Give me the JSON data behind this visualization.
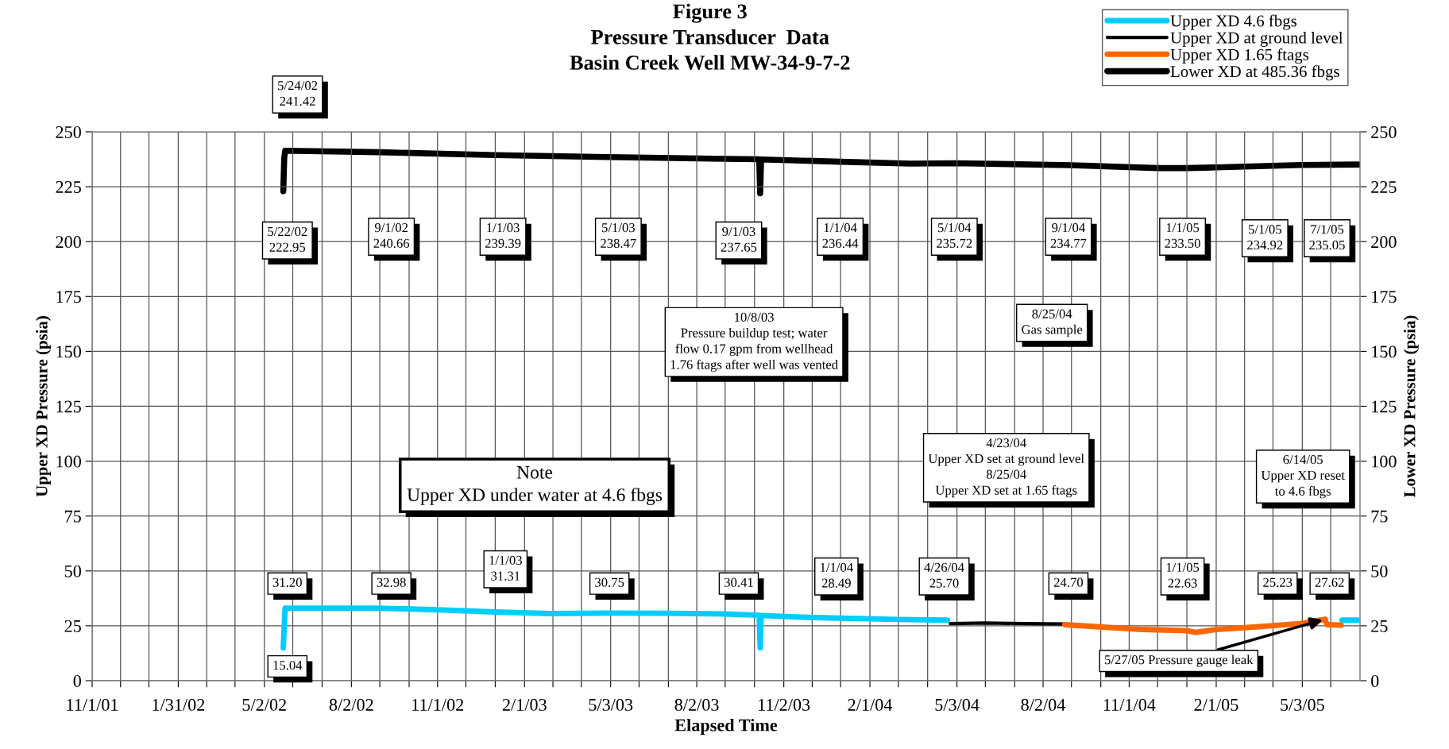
{
  "chart_data": {
    "type": "line",
    "title": "Figure 3\nPressure Transducer  Data\nBasin Creek Well MW-34-9-7-2",
    "xlabel": "Elapsed Time",
    "ylabel": "Upper XD Pressure (psia)",
    "y2label": "Lower XD Pressure (psia)",
    "xlim": [
      "2001-11-01",
      "2005-07-03"
    ],
    "xticks": [
      {
        "value": "2001-11-01",
        "label": "11/1/01"
      },
      {
        "value": "2001-12-01",
        "label": null
      },
      {
        "value": "2001-12-31",
        "label": null
      },
      {
        "value": "2002-01-31",
        "label": "1/31/02"
      },
      {
        "value": "2002-03-02",
        "label": null
      },
      {
        "value": "2002-04-01",
        "label": null
      },
      {
        "value": "2002-05-02",
        "label": "5/2/02"
      },
      {
        "value": "2002-06-01",
        "label": null
      },
      {
        "value": "2002-07-02",
        "label": null
      },
      {
        "value": "2002-08-02",
        "label": "8/2/02"
      },
      {
        "value": "2002-09-01",
        "label": null
      },
      {
        "value": "2002-10-02",
        "label": null
      },
      {
        "value": "2002-11-01",
        "label": "11/1/02"
      },
      {
        "value": "2002-12-01",
        "label": null
      },
      {
        "value": "2003-01-01",
        "label": null
      },
      {
        "value": "2003-02-01",
        "label": "2/1/03"
      },
      {
        "value": "2003-03-03",
        "label": null
      },
      {
        "value": "2003-04-02",
        "label": null
      },
      {
        "value": "2003-05-03",
        "label": "5/3/03"
      },
      {
        "value": "2003-06-02",
        "label": null
      },
      {
        "value": "2003-07-03",
        "label": null
      },
      {
        "value": "2003-08-02",
        "label": "8/2/03"
      },
      {
        "value": "2003-09-01",
        "label": null
      },
      {
        "value": "2003-10-02",
        "label": null
      },
      {
        "value": "2003-11-02",
        "label": "11/2/03"
      },
      {
        "value": "2003-12-02",
        "label": null
      },
      {
        "value": "2004-01-01",
        "label": null
      },
      {
        "value": "2004-02-01",
        "label": "2/1/04"
      },
      {
        "value": "2004-03-02",
        "label": null
      },
      {
        "value": "2004-04-02",
        "label": null
      },
      {
        "value": "2004-05-03",
        "label": "5/3/04"
      },
      {
        "value": "2004-06-02",
        "label": null
      },
      {
        "value": "2004-07-03",
        "label": null
      },
      {
        "value": "2004-08-02",
        "label": "8/2/04"
      },
      {
        "value": "2004-09-01",
        "label": null
      },
      {
        "value": "2004-10-02",
        "label": null
      },
      {
        "value": "2004-11-01",
        "label": "11/1/04"
      },
      {
        "value": "2004-12-01",
        "label": null
      },
      {
        "value": "2005-01-01",
        "label": null
      },
      {
        "value": "2005-02-01",
        "label": "2/1/05"
      },
      {
        "value": "2005-03-03",
        "label": null
      },
      {
        "value": "2005-04-02",
        "label": null
      },
      {
        "value": "2005-05-03",
        "label": "5/3/05"
      },
      {
        "value": "2005-06-02",
        "label": null
      }
    ],
    "ylim": [
      0,
      250
    ],
    "yticks": [
      0,
      25,
      50,
      75,
      100,
      125,
      150,
      175,
      200,
      225,
      250
    ],
    "y2lim": [
      0,
      250
    ],
    "y2ticks": [
      0,
      25,
      50,
      75,
      100,
      125,
      150,
      175,
      200,
      225,
      250
    ],
    "grid": true,
    "legend": "top right",
    "marker": "none",
    "line_style": "solid",
    "series": [
      {
        "name": "Upper XD 4.6 fbgs",
        "color": "#00ccff",
        "x": [
          "2002-05-22",
          "2002-05-23",
          "2002-05-24",
          "2002-07-01",
          "2002-09-01",
          "2002-11-01",
          "2003-01-01",
          "2003-03-01",
          "2003-05-01",
          "2003-07-01",
          "2003-09-01",
          "2003-10-07",
          "2003-10-08",
          "2003-10-09",
          "2003-11-15",
          "2004-01-01",
          "2004-03-01",
          "2004-04-23",
          "2004-05-01",
          "2005-06-14",
          "2005-07-01"
        ],
        "values": [
          15.0,
          25,
          33.0,
          33.0,
          33.0,
          32.3,
          31.3,
          30.6,
          30.8,
          30.7,
          30.4,
          29.8,
          15,
          29.7,
          29.0,
          28.5,
          27.9,
          27.6,
          null,
          27.6,
          27.6
        ]
      },
      {
        "name": "Upper XD at ground level",
        "color": "#000000",
        "x": [
          "2004-04-26",
          "2004-06-01",
          "2004-07-15",
          "2004-08-25"
        ],
        "values": [
          26.0,
          26.3,
          26.0,
          25.8
        ]
      },
      {
        "name": "Upper XD 1.65 ftags",
        "color": "#ff6600",
        "x": [
          "2004-08-25",
          "2004-10-01",
          "2004-11-15",
          "2005-01-01",
          "2005-01-10",
          "2005-02-01",
          "2005-03-15",
          "2005-05-01",
          "2005-05-27",
          "2005-05-29",
          "2005-06-13"
        ],
        "values": [
          25.5,
          24.5,
          23.3,
          22.8,
          22.0,
          23.3,
          24.5,
          26.0,
          28.0,
          25.5,
          25.3
        ]
      },
      {
        "name": "Lower XD at 485.36 fbgs",
        "color": "#000000",
        "axis": "y2",
        "x": [
          "2002-05-22",
          "2002-05-23",
          "2002-05-24",
          "2002-09-01",
          "2003-01-01",
          "2003-05-01",
          "2003-09-01",
          "2003-10-07",
          "2003-10-08",
          "2003-10-09",
          "2004-01-01",
          "2004-03-15",
          "2004-05-01",
          "2004-09-01",
          "2004-12-01",
          "2005-01-01",
          "2005-02-01",
          "2005-05-01",
          "2005-07-01"
        ],
        "values": [
          223.0,
          238,
          241.4,
          240.7,
          239.4,
          238.5,
          237.7,
          237.5,
          222,
          237.4,
          236.4,
          235.5,
          235.7,
          234.8,
          233.5,
          233.5,
          233.8,
          234.9,
          235.1
        ]
      }
    ],
    "annotations": [
      "5/24/02\n241.42",
      "5/22/02\n222.95",
      "9/1/02\n240.66",
      "1/1/03\n239.39",
      "5/1/03\n238.47",
      "9/1/03\n237.65",
      "1/1/04\n236.44",
      "5/1/04\n235.72",
      "9/1/04\n234.77",
      "1/1/05\n233.50",
      "5/1/05\n234.92",
      "7/1/05\n235.05",
      "31.20",
      "15.04",
      "32.98",
      "1/1/03\n31.31",
      "30.75",
      "30.41",
      "1/1/04\n28.49",
      "4/26/04\n25.70",
      "24.70",
      "1/1/05\n22.63",
      "25.23",
      "27.62",
      "10/8/03\nPressure buildup test; water\nflow 0.17 gpm from wellhead\n1.76 ftags after well was vented",
      "8/25/04\nGas sample",
      "Note\nUpper XD under water at 4.6 fbgs",
      "4/23/04\nUpper XD set at ground level\n8/25/04\nUpper XD set at 1.65 ftags",
      "6/14/05\nUpper XD reset\nto 4.6 fbgs",
      {
        "text": "5/27/05 Pressure gauge leak",
        "x": "2005-05-27",
        "y": 28.0
      }
    ]
  }
}
